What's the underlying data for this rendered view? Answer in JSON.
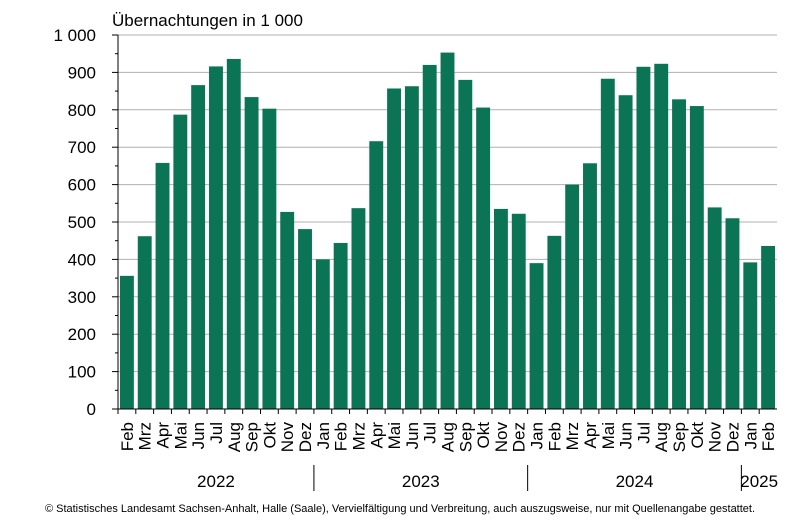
{
  "chart_data": {
    "type": "bar",
    "ylabel": "Übernachtungen in 1 000",
    "ylim": [
      0,
      1000
    ],
    "yticks": [
      "0",
      "100",
      "200",
      "300",
      "400",
      "500",
      "600",
      "700",
      "800",
      "900",
      "1 000"
    ],
    "grid": true,
    "bar_color": "#0a7455",
    "categories": [
      "Feb",
      "Mrz",
      "Apr",
      "Mai",
      "Jun",
      "Jul",
      "Aug",
      "Sep",
      "Okt",
      "Nov",
      "Dez",
      "Jan",
      "Feb",
      "Mrz",
      "Apr",
      "Mai",
      "Jun",
      "Jul",
      "Aug",
      "Sep",
      "Okt",
      "Nov",
      "Dez",
      "Jan",
      "Feb",
      "Mrz",
      "Apr",
      "Mai",
      "Jun",
      "Jul",
      "Aug",
      "Sep",
      "Okt",
      "Nov",
      "Dez",
      "Jan",
      "Feb"
    ],
    "values": [
      356,
      462,
      658,
      787,
      866,
      916,
      936,
      834,
      803,
      527,
      481,
      400,
      444,
      537,
      716,
      857,
      863,
      920,
      953,
      880,
      806,
      535,
      522,
      390,
      463,
      600,
      657,
      883,
      839,
      915,
      923,
      828,
      810,
      539,
      510,
      392,
      436
    ],
    "year_groups": [
      {
        "label": "2022",
        "start": 0,
        "count": 11
      },
      {
        "label": "2023",
        "start": 11,
        "count": 12
      },
      {
        "label": "2024",
        "start": 23,
        "count": 12
      },
      {
        "label": "2025",
        "start": 35,
        "count": 2
      }
    ]
  },
  "footer": "© Statistisches Landesamt Sachsen-Anhalt, Halle (Saale), Vervielfältigung und Verbreitung, auch auszugsweise, nur mit Quellenangabe gestattet."
}
